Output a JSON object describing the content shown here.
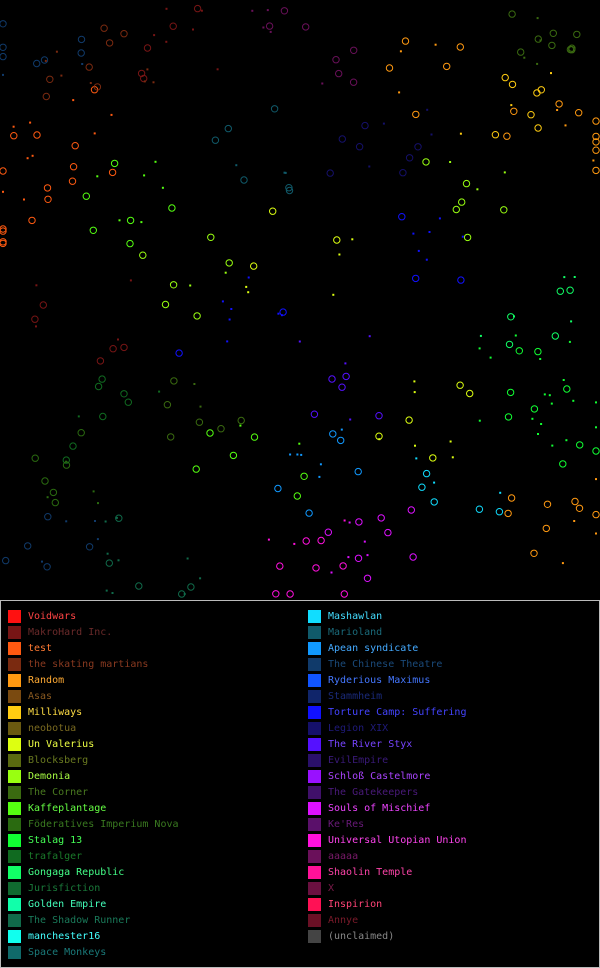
{
  "map": {
    "background": "#000000",
    "systems_note_icon": "planet-marker-icon"
  },
  "legend": {
    "left": [
      {
        "label": "Voidwars",
        "color": "#ff1111",
        "text_color": "#ff4444"
      },
      {
        "label": "MakroHard Inc.",
        "color": "#771515",
        "text_color": "#6a2a2a"
      },
      {
        "label": "test",
        "color": "#ff5a11",
        "text_color": "#ff7a33"
      },
      {
        "label": "the skating martians",
        "color": "#7a2a10",
        "text_color": "#8a3a20"
      },
      {
        "label": "Random",
        "color": "#ff9911",
        "text_color": "#ffaa33"
      },
      {
        "label": "Asas",
        "color": "#7a4a10",
        "text_color": "#8a5a20"
      },
      {
        "label": "Milliways",
        "color": "#ffcc11",
        "text_color": "#ffdd44"
      },
      {
        "label": "neobotua",
        "color": "#6a5a10",
        "text_color": "#7a6a20"
      },
      {
        "label": "Un Valerius",
        "color": "#ddff11",
        "text_color": "#eeff44"
      },
      {
        "label": "Blocksberg",
        "color": "#5a6a10",
        "text_color": "#6a7a20"
      },
      {
        "label": "Demonia",
        "color": "#99ff11",
        "text_color": "#aaff44"
      },
      {
        "label": "The Corner",
        "color": "#3a6a10",
        "text_color": "#4a7a20"
      },
      {
        "label": "Kaffeplantage",
        "color": "#55ff11",
        "text_color": "#66ff44"
      },
      {
        "label": "Föderatives Imperium Nova",
        "color": "#2a6a10",
        "text_color": "#3a7a20"
      },
      {
        "label": "Stalag 13",
        "color": "#11ff33",
        "text_color": "#44ff55"
      },
      {
        "label": "trafalger",
        "color": "#106a20",
        "text_color": "#1a7a2a"
      },
      {
        "label": "Gongaga Republic",
        "color": "#11ff66",
        "text_color": "#44ff88"
      },
      {
        "label": "Jurisfiction",
        "color": "#106a30",
        "text_color": "#1a7a3a"
      },
      {
        "label": "Golden Empire",
        "color": "#11ffaa",
        "text_color": "#44ffbb"
      },
      {
        "label": "The Shadow Runner",
        "color": "#106a4a",
        "text_color": "#1a7a5a"
      },
      {
        "label": "manchester16",
        "color": "#11ffee",
        "text_color": "#44ffff"
      },
      {
        "label": "Space Monkeys",
        "color": "#106a6a",
        "text_color": "#1a7a7a"
      }
    ],
    "right": [
      {
        "label": "Mashawlan",
        "color": "#11ddff",
        "text_color": "#44ddff"
      },
      {
        "label": "Marioland",
        "color": "#105a6a",
        "text_color": "#1a6a7a"
      },
      {
        "label": "Apean syndicate",
        "color": "#1199ff",
        "text_color": "#44aaff"
      },
      {
        "label": "The Chinese Theatre",
        "color": "#103a6a",
        "text_color": "#1a4a7a"
      },
      {
        "label": "Ryderious Maximus",
        "color": "#1155ff",
        "text_color": "#4477ff"
      },
      {
        "label": "Stammheim",
        "color": "#10256a",
        "text_color": "#1a2a7a"
      },
      {
        "label": "Torture Camp: Suffering",
        "color": "#1111ff",
        "text_color": "#4444ff"
      },
      {
        "label": "Legion XIX",
        "color": "#15106a",
        "text_color": "#1f1a7a"
      },
      {
        "label": "The River Styx",
        "color": "#5511ff",
        "text_color": "#7744ff"
      },
      {
        "label": "EvilEmpire",
        "color": "#2a106a",
        "text_color": "#3a1a7a"
      },
      {
        "label": "Schloß Castelmore",
        "color": "#9911ff",
        "text_color": "#aa44ff"
      },
      {
        "label": "The Gatekeepers",
        "color": "#40106a",
        "text_color": "#4a1a7a"
      },
      {
        "label": "Souls of Mischief",
        "color": "#dd11ff",
        "text_color": "#ee44ff"
      },
      {
        "label": "Ke'Res",
        "color": "#5a106a",
        "text_color": "#6a1a7a"
      },
      {
        "label": "Universal Utopian Union",
        "color": "#ff11dd",
        "text_color": "#ff44ee"
      },
      {
        "label": "aaaaa",
        "color": "#6a105a",
        "text_color": "#7a1a6a"
      },
      {
        "label": "Shaolin Temple",
        "color": "#ff1199",
        "text_color": "#ff44aa"
      },
      {
        "label": "X",
        "color": "#6a1040",
        "text_color": "#7a1a4a"
      },
      {
        "label": "Inspirion",
        "color": "#ff1155",
        "text_color": "#ff4477"
      },
      {
        "label": "Annye",
        "color": "#6a1025",
        "text_color": "#7a1a2a"
      },
      {
        "label": "(unclaimed)",
        "color": "#444444",
        "text_color": "#888888"
      }
    ]
  }
}
